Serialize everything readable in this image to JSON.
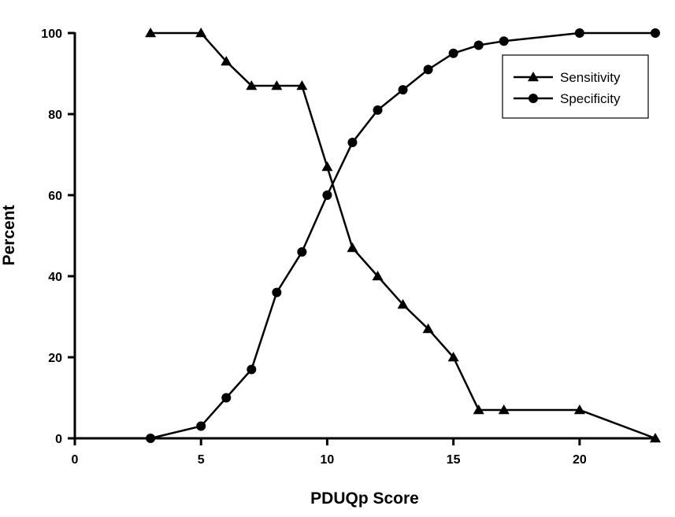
{
  "chart_data": {
    "type": "line",
    "xlabel": "PDUQp Score",
    "ylabel": "Percent",
    "xlim": [
      0,
      23
    ],
    "ylim": [
      0,
      100
    ],
    "x_ticks": [
      0,
      5,
      10,
      15,
      20
    ],
    "y_ticks": [
      0,
      20,
      40,
      60,
      80,
      100
    ],
    "legend_position": "top-right",
    "grid": false,
    "series": [
      {
        "name": "Sensitivity",
        "marker": "triangle",
        "color": "#000000",
        "points": [
          [
            3,
            100
          ],
          [
            5,
            100
          ],
          [
            6,
            93
          ],
          [
            7,
            87
          ],
          [
            8,
            87
          ],
          [
            9,
            87
          ],
          [
            10,
            67
          ],
          [
            11,
            47
          ],
          [
            12,
            40
          ],
          [
            13,
            33
          ],
          [
            14,
            27
          ],
          [
            15,
            20
          ],
          [
            16,
            7
          ],
          [
            17,
            7
          ],
          [
            20,
            7
          ],
          [
            23,
            0
          ]
        ]
      },
      {
        "name": "Specificity",
        "marker": "circle",
        "color": "#000000",
        "points": [
          [
            3,
            0
          ],
          [
            5,
            3
          ],
          [
            6,
            10
          ],
          [
            7,
            17
          ],
          [
            8,
            36
          ],
          [
            9,
            46
          ],
          [
            10,
            60
          ],
          [
            11,
            73
          ],
          [
            12,
            81
          ],
          [
            13,
            86
          ],
          [
            14,
            91
          ],
          [
            15,
            95
          ],
          [
            16,
            97
          ],
          [
            17,
            98
          ],
          [
            20,
            100
          ],
          [
            23,
            100
          ]
        ]
      }
    ]
  }
}
